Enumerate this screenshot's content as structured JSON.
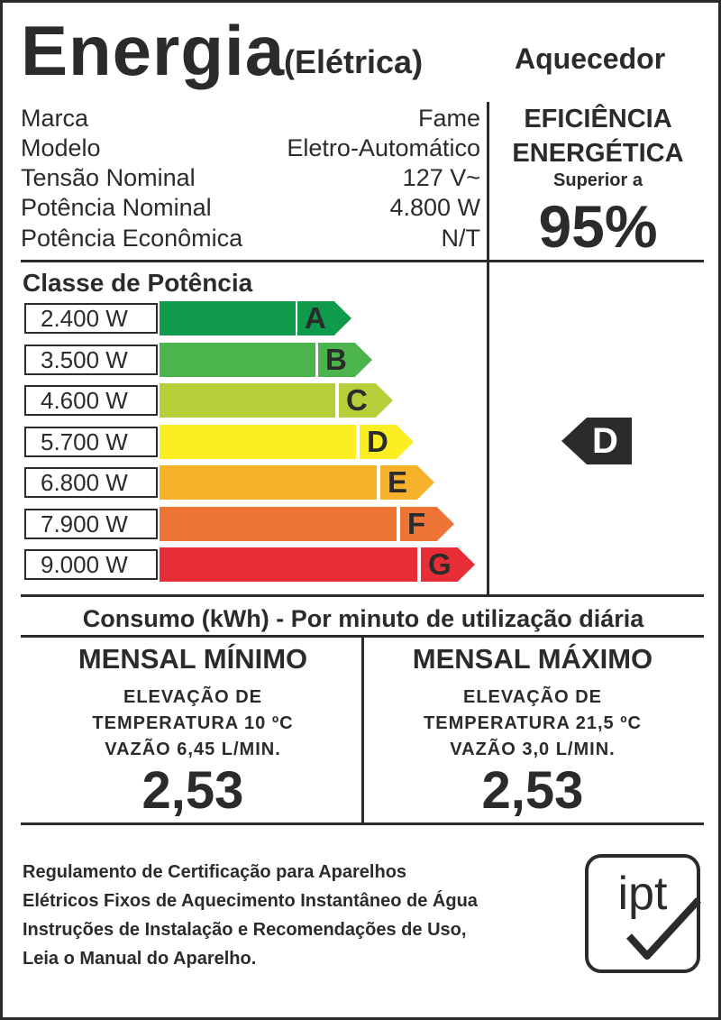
{
  "header": {
    "title": "Energia",
    "subtitle": "(Elétrica)",
    "appliance": "Aquecedor"
  },
  "specs": [
    {
      "label": "Marca",
      "value": "Fame"
    },
    {
      "label": "Modelo",
      "value": "Eletro-Automático"
    },
    {
      "label": "Tensão Nominal",
      "value": "127 V~"
    },
    {
      "label": "Potência Nominal",
      "value": "4.800 W"
    },
    {
      "label": "Potência Econômica",
      "value": "N/T"
    }
  ],
  "efficiency": {
    "title_line1": "EFICIÊNCIA",
    "title_line2": "ENERGÉTICA",
    "qualifier": "Superior a",
    "value": "95%"
  },
  "power_class": {
    "title": "Classe de Potência",
    "rows": [
      {
        "power": "2.400 W",
        "letter": "A",
        "color": "#0f9a4c"
      },
      {
        "power": "3.500 W",
        "letter": "B",
        "color": "#4bb44a"
      },
      {
        "power": "4.600 W",
        "letter": "C",
        "color": "#b5cf3b"
      },
      {
        "power": "5.700 W",
        "letter": "D",
        "color": "#fbee23"
      },
      {
        "power": "6.800 W",
        "letter": "E",
        "color": "#f8b12a"
      },
      {
        "power": "7.900 W",
        "letter": "F",
        "color": "#ee7435"
      },
      {
        "power": "9.000 W",
        "letter": "G",
        "color": "#e72d36"
      }
    ],
    "selected_class": "D"
  },
  "consumption": {
    "title": "Consumo (kWh) - Por minuto de utilização diária",
    "min": {
      "title": "MENSAL MÍNIMO",
      "line1": "ELEVAÇÃO DE",
      "line2": "TEMPERATURA 10 ºC",
      "line3": "VAZÃO 6,45 L/MIN.",
      "value": "2,53"
    },
    "max": {
      "title": "MENSAL MÁXIMO",
      "line1": "ELEVAÇÃO DE",
      "line2": "TEMPERATURA 21,5 ºC",
      "line3": "VAZÃO 3,0 L/MIN.",
      "value": "2,53"
    }
  },
  "footer": {
    "lines": [
      "Regulamento de Certificação para Aparelhos",
      "Elétricos Fixos de Aquecimento Instantâneo de Água",
      "Instruções de Instalação e Recomendações de Uso,",
      "Leia o Manual do Aparelho."
    ],
    "logo_text": "ipt"
  }
}
